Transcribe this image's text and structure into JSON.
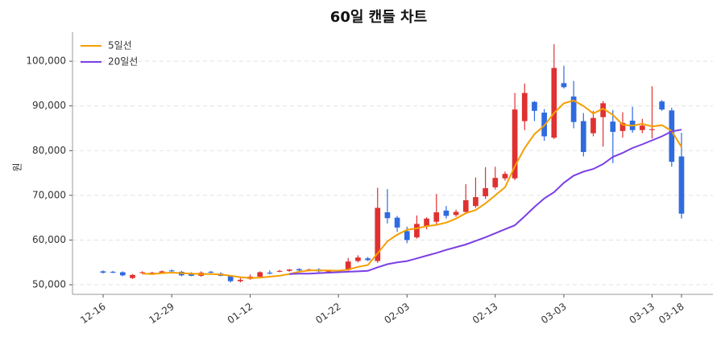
{
  "chart_data": {
    "type": "candlestick",
    "title": "60일 캔들 차트",
    "ylabel": "원",
    "categories": [
      "12-16",
      null,
      null,
      null,
      null,
      null,
      null,
      "12-29",
      null,
      null,
      null,
      null,
      null,
      null,
      null,
      "01-12",
      null,
      null,
      null,
      null,
      null,
      null,
      null,
      null,
      "01-22",
      null,
      null,
      null,
      null,
      null,
      null,
      "02-03",
      null,
      null,
      null,
      null,
      null,
      null,
      null,
      null,
      "02-13",
      null,
      null,
      null,
      null,
      null,
      null,
      "03-03",
      null,
      null,
      null,
      null,
      null,
      null,
      null,
      null,
      "03-13",
      null,
      null,
      "03-18"
    ],
    "candles": {
      "open": [
        53000,
        52900,
        52800,
        51500,
        52700,
        52500,
        52700,
        53200,
        52900,
        52400,
        52000,
        52900,
        52500,
        51900,
        50800,
        51300,
        51800,
        52700,
        52900,
        53100,
        53500,
        53300,
        53400,
        52900,
        53000,
        53300,
        55300,
        55900,
        55300,
        66200,
        65000,
        62000,
        60600,
        63100,
        64100,
        66600,
        65600,
        66300,
        67600,
        69800,
        71800,
        73800,
        73800,
        86600,
        90900,
        88500,
        82900,
        95100,
        92100,
        86600,
        83900,
        87500,
        86500,
        84400,
        86700,
        84600,
        84600,
        91000,
        89000,
        78700
      ],
      "high": [
        53200,
        53100,
        53000,
        52400,
        53000,
        52900,
        53200,
        53400,
        53100,
        52800,
        53000,
        53100,
        52800,
        52100,
        51600,
        52300,
        53000,
        53200,
        53300,
        53500,
        53700,
        53600,
        53700,
        53300,
        53300,
        56000,
        56600,
        56200,
        71700,
        71400,
        65400,
        63000,
        65500,
        65100,
        70300,
        67600,
        66800,
        72500,
        74000,
        76300,
        76400,
        75300,
        92900,
        95000,
        91100,
        89300,
        103800,
        99000,
        95600,
        88400,
        88900,
        91100,
        89100,
        88600,
        89800,
        87100,
        94400,
        91300,
        89600,
        84000
      ],
      "low": [
        52500,
        52600,
        51900,
        51300,
        52400,
        52200,
        52600,
        52900,
        51900,
        51900,
        51800,
        52600,
        51900,
        50500,
        50500,
        51100,
        51600,
        52300,
        52800,
        52900,
        53000,
        53000,
        52700,
        52500,
        52900,
        53100,
        55000,
        55300,
        54900,
        63700,
        61800,
        59300,
        60300,
        62400,
        63500,
        64800,
        65200,
        65900,
        67200,
        69200,
        71300,
        73300,
        73400,
        84600,
        86600,
        82200,
        82600,
        93900,
        85000,
        78700,
        83200,
        80900,
        77200,
        82900,
        84000,
        83900,
        82700,
        88900,
        76400,
        64800
      ],
      "close": [
        52700,
        52700,
        52100,
        52200,
        52800,
        52700,
        53000,
        53000,
        52100,
        52000,
        52700,
        52700,
        52000,
        50800,
        51100,
        51800,
        52800,
        52500,
        53100,
        53400,
        53200,
        53400,
        53000,
        53100,
        53200,
        55200,
        56100,
        55500,
        67200,
        64900,
        62800,
        60000,
        63600,
        64800,
        66200,
        65400,
        66300,
        68900,
        69600,
        71600,
        73900,
        74800,
        89200,
        92900,
        88900,
        83200,
        98500,
        94200,
        86400,
        79700,
        87300,
        90600,
        84200,
        86200,
        84600,
        85600,
        84800,
        89200,
        77500,
        65900
      ]
    },
    "up_color": "#e03131",
    "down_color": "#2f6be0",
    "series": [
      {
        "name": "5일선",
        "color": "#f59f00",
        "values": [
          null,
          null,
          null,
          null,
          52500,
          52400,
          52600,
          52700,
          52600,
          52500,
          52400,
          52400,
          52300,
          52000,
          51700,
          51500,
          51600,
          51800,
          52000,
          52400,
          52900,
          53200,
          53200,
          53200,
          53100,
          53400,
          54000,
          54400,
          57000,
          59700,
          61200,
          62300,
          62600,
          63100,
          63400,
          63900,
          64800,
          66000,
          66700,
          68200,
          70000,
          71800,
          76500,
          80600,
          83700,
          85600,
          88400,
          90600,
          91200,
          90000,
          88300,
          89400,
          88000,
          85800,
          85600,
          86000,
          85400,
          85700,
          84400,
          80800
        ]
      },
      {
        "name": "20일선",
        "color": "#7b3fe4",
        "values": [
          null,
          null,
          null,
          null,
          null,
          null,
          null,
          null,
          null,
          null,
          null,
          null,
          null,
          null,
          null,
          null,
          null,
          null,
          null,
          52400,
          52500,
          52500,
          52600,
          52700,
          52800,
          52900,
          53000,
          53100,
          53900,
          54600,
          55000,
          55300,
          55900,
          56500,
          57100,
          57800,
          58400,
          59000,
          59800,
          60600,
          61500,
          62400,
          63300,
          65300,
          67400,
          69300,
          70700,
          72800,
          74400,
          75300,
          75900,
          77000,
          78600,
          79500,
          80600,
          81400,
          82300,
          83200,
          84300,
          84700
        ]
      }
    ],
    "ylim": [
      47850,
      106500
    ],
    "yticks": [
      {
        "value": 50000,
        "label": "50,000"
      },
      {
        "value": 60000,
        "label": "60,000"
      },
      {
        "value": 70000,
        "label": "70,000"
      },
      {
        "value": 80000,
        "label": "80,000"
      },
      {
        "value": 90000,
        "label": "90,000"
      },
      {
        "value": 100000,
        "label": "100,000"
      }
    ],
    "grid": true,
    "legend": "upper left"
  }
}
